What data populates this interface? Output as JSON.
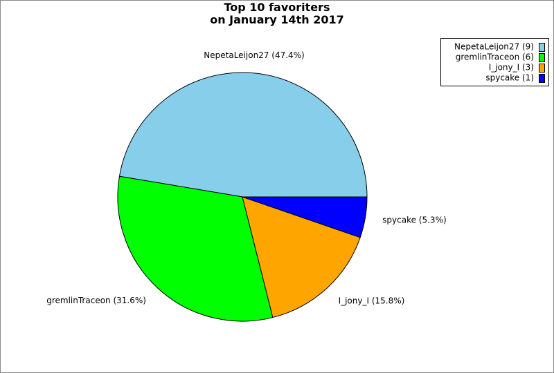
{
  "chart_data": {
    "type": "pie",
    "title": "Top 10 favoriters\non January 14th 2017",
    "categories": [
      "NepetaLeijon27 (9)",
      "gremlinTraceon (6)",
      "I_jony_I (3)",
      "spycake (1)"
    ],
    "values": [
      47.4,
      31.6,
      15.8,
      5.3
    ],
    "value_labels": [
      "NepetaLeijon27 (47.4%)",
      "gremlinTraceon (31.6%)",
      "I_jony_I (15.8%)",
      "spycake (5.3%)"
    ],
    "colors": [
      "#87ceeb",
      "#00ff00",
      "#ffa500",
      "#0000ff"
    ],
    "legend": "upper right"
  }
}
